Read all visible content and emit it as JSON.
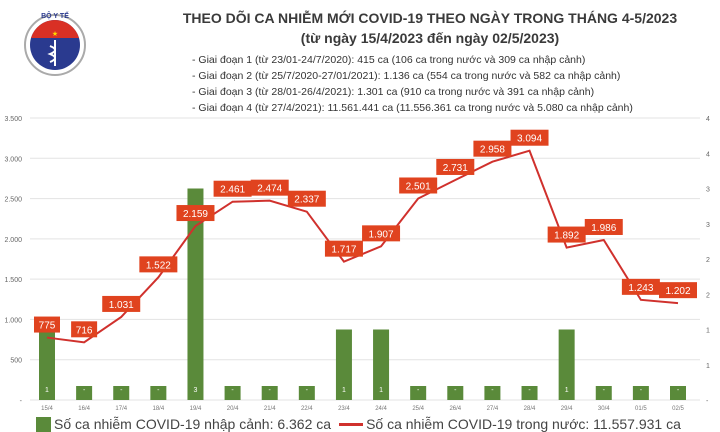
{
  "header": {
    "title": "THEO DÕI CA NHIỄM MỚI COVID-19 THEO NGÀY TRONG THÁNG 4-5/2023",
    "subtitle": "(từ ngày 15/4/2023 đến ngày 02/5/2023)",
    "notes": [
      "- Giai đoạn 1 (từ 23/01-24/7/2020): 415 ca (106 ca trong nước và 309 ca nhập cảnh)",
      "- Giai đoạn 2 (từ 25/7/2020-27/01/2021): 1.136 ca (554 ca trong nước và 582 ca nhập cảnh)",
      "- Giai đoạn 3 (từ 28/01-26/4/2021): 1.301 ca (910 ca trong nước và 391 ca nhập cảnh)",
      "- Giai đoạn 4 (từ 27/4/2021): 11.561.441 ca (11.556.361 ca trong nước và 5.080 ca nhập cảnh)"
    ],
    "logo_text": "BỘ Y TẾ MINISTRY OF HEALTH"
  },
  "chart_data": {
    "type": "bar+line",
    "categories": [
      "15/4",
      "16/4",
      "17/4",
      "18/4",
      "19/4",
      "20/4",
      "21/4",
      "22/4",
      "23/4",
      "24/4",
      "25/4",
      "26/4",
      "27/4",
      "28/4",
      "29/4",
      "30/4",
      "01/5",
      "02/5"
    ],
    "series": [
      {
        "name": "Số ca nhiễm COVID-19 nhập cảnh: 6.362 ca",
        "type": "bar",
        "axis": "right",
        "color": "#5a8a3a",
        "values": [
          1,
          0,
          0,
          0,
          3,
          0,
          0,
          0,
          1,
          1,
          0,
          0,
          0,
          0,
          1,
          0,
          0,
          0
        ],
        "labels": [
          "1",
          "-",
          "-",
          "-",
          "3",
          "-",
          "-",
          "-",
          "1",
          "1",
          "-",
          "-",
          "-",
          "-",
          "1",
          "-",
          "-",
          "-"
        ]
      },
      {
        "name": "Số ca nhiễm COVID-19 trong nước: 11.557.931 ca",
        "type": "line",
        "axis": "left",
        "color": "#d0312d",
        "values": [
          775,
          716,
          1031,
          1522,
          2159,
          2461,
          2474,
          2337,
          1717,
          1907,
          2501,
          2731,
          2958,
          3094,
          1892,
          1986,
          1243,
          1202
        ],
        "labels": [
          "775",
          "716",
          "1.031",
          "1.522",
          "2.159",
          "2.461",
          "2.474",
          "2.337",
          "1.717",
          "1.907",
          "2.501",
          "2.731",
          "2.958",
          "3.094",
          "1.892",
          "1.986",
          "1.243",
          "1.202"
        ]
      }
    ],
    "left_axis": {
      "ylim": [
        0,
        3500
      ],
      "ticks": [
        "-",
        "500",
        "1.000",
        "1.500",
        "2.000",
        "2.500",
        "3.000",
        "3.500"
      ]
    },
    "right_axis": {
      "ylim": [
        0,
        4
      ],
      "ticks": [
        "-",
        "1",
        "1",
        "2",
        "2",
        "3",
        "3",
        "4",
        "4"
      ]
    },
    "grid": true,
    "legend": "bottom",
    "label_bg": "#e0431f"
  }
}
